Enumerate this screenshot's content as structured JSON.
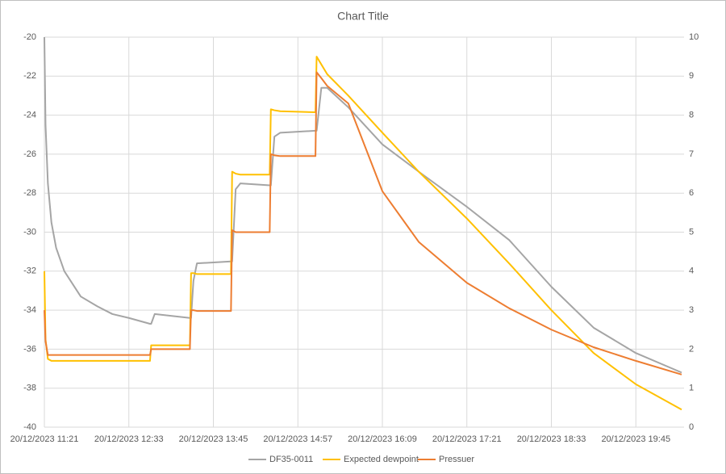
{
  "chart_data": {
    "type": "line",
    "title": "Chart Title",
    "x": [
      "20/12/2023 11:21",
      "20/12/2023 11:22",
      "20/12/2023 11:24",
      "20/12/2023 11:27",
      "20/12/2023 11:31",
      "20/12/2023 11:38",
      "20/12/2023 11:52",
      "20/12/2023 12:06",
      "20/12/2023 12:19",
      "20/12/2023 12:33",
      "20/12/2023 12:51",
      "20/12/2023 12:52",
      "20/12/2023 12:55",
      "20/12/2023 13:25",
      "20/12/2023 13:26",
      "20/12/2023 13:28",
      "20/12/2023 13:31",
      "20/12/2023 14:00",
      "20/12/2023 14:01",
      "20/12/2023 14:04",
      "20/12/2023 14:08",
      "20/12/2023 14:33",
      "20/12/2023 14:34",
      "20/12/2023 14:37",
      "20/12/2023 14:42",
      "20/12/2023 15:12",
      "20/12/2023 15:13",
      "20/12/2023 15:17",
      "20/12/2023 15:22",
      "20/12/2023 15:40",
      "20/12/2023 16:09",
      "20/12/2023 16:40",
      "20/12/2023 17:21",
      "20/12/2023 17:57",
      "20/12/2023 18:33",
      "20/12/2023 19:09",
      "20/12/2023 19:45",
      "20/12/2023 20:24"
    ],
    "series": [
      {
        "name": "DF35-0011",
        "color": "#a5a5a5",
        "axis": "y",
        "values": [
          -20,
          -24.5,
          -27.5,
          -29.5,
          -30.8,
          -32.0,
          -33.3,
          -33.8,
          -34.2,
          -34.4,
          -34.7,
          -34.7,
          -34.2,
          -34.4,
          -34.4,
          -32.5,
          -31.6,
          -31.5,
          -31.5,
          -27.8,
          -27.5,
          -27.6,
          -27.6,
          -25.1,
          -24.9,
          -24.8,
          -24.8,
          -22.6,
          -22.6,
          -23.6,
          -25.5,
          -26.9,
          -28.7,
          -30.4,
          -32.8,
          -34.9,
          -36.2,
          -37.2
        ]
      },
      {
        "name": "Expected dewpoint",
        "color": "#ffc000",
        "axis": "y",
        "values": [
          -32,
          -35.5,
          -36.5,
          -36.6,
          -36.6,
          -36.6,
          -36.6,
          -36.6,
          -36.6,
          -36.6,
          -36.6,
          -35.8,
          -35.8,
          -35.8,
          -32.1,
          -32.1,
          -32.15,
          -32.15,
          -26.9,
          -27.0,
          -27.05,
          -27.05,
          -23.7,
          -23.75,
          -23.8,
          -23.85,
          -21.0,
          -21.4,
          -21.9,
          -23.0,
          -24.9,
          -26.9,
          -29.3,
          -31.6,
          -34.0,
          -36.2,
          -37.8,
          -39.1
        ]
      },
      {
        "name": "Pressuer",
        "color": "#ed7d31",
        "axis": "y2",
        "values": [
          3.0,
          2.2,
          1.85,
          1.85,
          1.85,
          1.85,
          1.85,
          1.85,
          1.85,
          1.85,
          1.85,
          2.0,
          2.0,
          2.0,
          3.0,
          3.0,
          2.98,
          2.98,
          5.05,
          5.0,
          5.0,
          5.0,
          7.0,
          6.97,
          6.95,
          6.95,
          9.1,
          8.95,
          8.75,
          8.3,
          6.05,
          4.75,
          3.7,
          3.05,
          2.5,
          2.05,
          1.7,
          1.35
        ]
      }
    ],
    "xlim": [
      "20/12/2023 11:21",
      "20/12/2023 20:24"
    ],
    "xticks": [
      "20/12/2023 11:21",
      "20/12/2023 12:33",
      "20/12/2023 13:45",
      "20/12/2023 14:57",
      "20/12/2023 16:09",
      "20/12/2023 17:21",
      "20/12/2023 18:33",
      "20/12/2023 19:45"
    ],
    "ylim": [
      -40,
      -20
    ],
    "yticks": [
      -40,
      -38,
      -36,
      -34,
      -32,
      -30,
      -28,
      -26,
      -24,
      -22,
      -20
    ],
    "y2lim": [
      0,
      10
    ],
    "y2ticks": [
      0,
      1,
      2,
      3,
      4,
      5,
      6,
      7,
      8,
      9,
      10
    ],
    "grid": true,
    "legend": "bottom"
  }
}
